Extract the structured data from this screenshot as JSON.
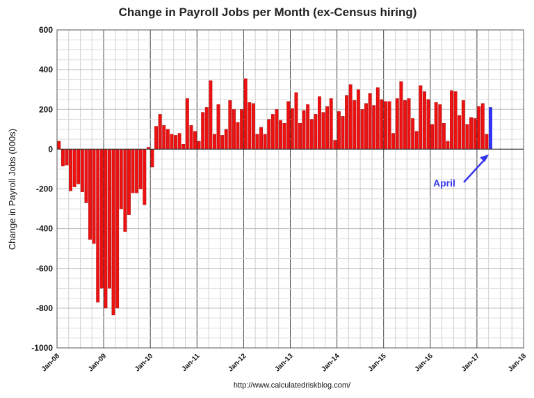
{
  "chart_data": {
    "type": "bar",
    "title": "Change in Payroll Jobs per Month (ex-Census hiring)",
    "ylabel": "Change in Payroll Jobs (000s)",
    "xlabel": "",
    "source": "http://www.calculatedriskblog.com/",
    "ylim": [
      -1000,
      600
    ],
    "yticks": [
      600,
      400,
      200,
      0,
      -200,
      -400,
      -600,
      -800,
      -1000
    ],
    "x_tick_labels": [
      "Jan-08",
      "Jan-09",
      "Jan-10",
      "Jan-11",
      "Jan-12",
      "Jan-13",
      "Jan-14",
      "Jan-15",
      "Jan-16",
      "Jan-17",
      "Jan-18"
    ],
    "start_month": "Jan-08",
    "grid": true,
    "colors": {
      "bar": "#ee1111",
      "latest": "#3333ff",
      "annotation": "#3333ee"
    },
    "annotation": {
      "text": "April",
      "target_index": 111
    },
    "values": [
      40,
      -85,
      -80,
      -210,
      -190,
      -175,
      -215,
      -270,
      -455,
      -475,
      -770,
      -700,
      -800,
      -700,
      -835,
      -800,
      -300,
      -415,
      -330,
      -220,
      -220,
      -200,
      -280,
      10,
      -90,
      115,
      175,
      120,
      100,
      75,
      70,
      80,
      25,
      255,
      120,
      90,
      40,
      185,
      210,
      345,
      75,
      225,
      70,
      100,
      245,
      200,
      135,
      200,
      355,
      235,
      230,
      75,
      110,
      75,
      150,
      175,
      200,
      145,
      130,
      240,
      205,
      285,
      130,
      195,
      225,
      150,
      175,
      265,
      185,
      215,
      255,
      45,
      190,
      165,
      270,
      325,
      245,
      300,
      200,
      230,
      280,
      220,
      310,
      250,
      240,
      240,
      80,
      255,
      340,
      245,
      255,
      155,
      90,
      320,
      290,
      250,
      125,
      235,
      225,
      130,
      40,
      295,
      290,
      170,
      245,
      125,
      160,
      155,
      215,
      230,
      75,
      210
    ]
  }
}
